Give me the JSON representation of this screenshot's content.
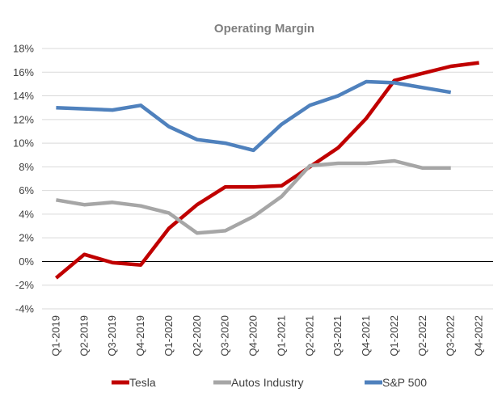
{
  "chart_data": {
    "type": "line",
    "title": "Operating Margin",
    "xlabel": "",
    "ylabel": "",
    "categories": [
      "Q1-2019",
      "Q2-2019",
      "Q3-2019",
      "Q4-2019",
      "Q1-2020",
      "Q2-2020",
      "Q3-2020",
      "Q4-2020",
      "Q1-2021",
      "Q2-2021",
      "Q3-2021",
      "Q4-2021",
      "Q1-2022",
      "Q2-2022",
      "Q3-2022",
      "Q4-2022"
    ],
    "ylim": [
      -4,
      18
    ],
    "y_ticks": [
      -4,
      -2,
      0,
      2,
      4,
      6,
      8,
      10,
      12,
      14,
      16,
      18
    ],
    "y_tick_labels": [
      "-4%",
      "-2%",
      "0%",
      "2%",
      "4%",
      "6%",
      "8%",
      "10%",
      "12%",
      "14%",
      "16%",
      "18%"
    ],
    "grid": true,
    "legend_position": "bottom",
    "series": [
      {
        "name": "Tesla",
        "color": "#c00000",
        "values": [
          -1.4,
          0.6,
          -0.1,
          -0.3,
          2.8,
          4.8,
          6.3,
          6.3,
          6.4,
          8.0,
          9.6,
          12.1,
          15.3,
          15.9,
          16.5,
          16.8
        ]
      },
      {
        "name": "Autos Industry",
        "color": "#a6a6a6",
        "values": [
          5.2,
          4.8,
          5.0,
          4.7,
          4.1,
          2.4,
          2.6,
          3.8,
          5.5,
          8.1,
          8.3,
          8.3,
          8.5,
          7.9,
          7.9,
          null
        ]
      },
      {
        "name": "S&P 500",
        "color": "#4f81bd",
        "values": [
          13.0,
          12.9,
          12.8,
          13.2,
          11.4,
          10.3,
          10.0,
          9.4,
          11.6,
          13.2,
          14.0,
          15.2,
          15.1,
          14.7,
          14.3,
          null
        ]
      }
    ]
  }
}
